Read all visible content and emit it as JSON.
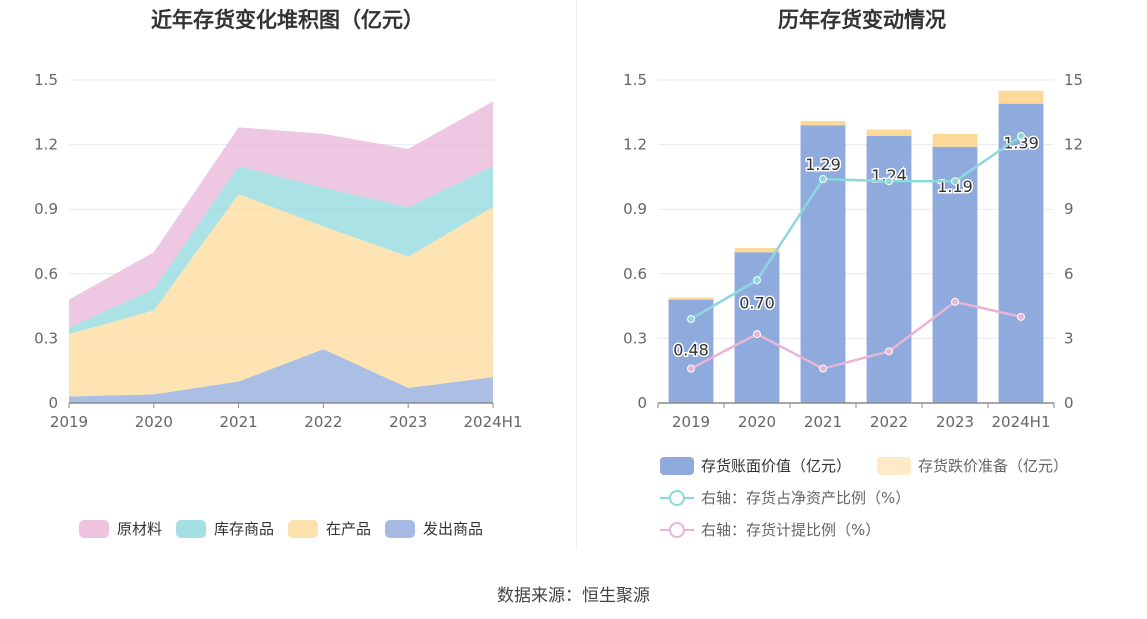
{
  "source": {
    "label": "数据来源：恒生聚源"
  },
  "chart_data": [
    {
      "type": "area",
      "stacked": true,
      "title": "近年存货变化堆积图（亿元）",
      "categories": [
        "2019",
        "2020",
        "2021",
        "2022",
        "2023",
        "2024H1"
      ],
      "ylim": [
        0,
        1.5
      ],
      "yticks": [
        "0",
        "0.3",
        "0.6",
        "0.9",
        "1.2",
        "1.5"
      ],
      "grid": true,
      "legend_position": "bottom",
      "series": [
        {
          "name": "发出商品",
          "color": "#8faadc",
          "values": [
            0.03,
            0.04,
            0.1,
            0.25,
            0.07,
            0.12
          ]
        },
        {
          "name": "在产品",
          "color": "#fdd999",
          "values": [
            0.29,
            0.39,
            0.87,
            0.57,
            0.61,
            0.79
          ]
        },
        {
          "name": "库存商品",
          "color": "#8dd8dc",
          "values": [
            0.03,
            0.1,
            0.13,
            0.18,
            0.23,
            0.19
          ]
        },
        {
          "name": "原材料",
          "color": "#e8b4d8",
          "values": [
            0.13,
            0.17,
            0.18,
            0.25,
            0.27,
            0.3
          ]
        }
      ],
      "legend_order": [
        "原材料",
        "库存商品",
        "在产品",
        "发出商品"
      ]
    },
    {
      "type": "bar",
      "stacked": true,
      "title": "历年存货变动情况",
      "categories": [
        "2019",
        "2020",
        "2021",
        "2022",
        "2023",
        "2024H1"
      ],
      "ylim": [
        0,
        1.5
      ],
      "yticks": [
        "0",
        "0.3",
        "0.6",
        "0.9",
        "1.2",
        "1.5"
      ],
      "y2lim": [
        0,
        15
      ],
      "y2ticks": [
        "0",
        "3",
        "6",
        "9",
        "12",
        "15"
      ],
      "grid": true,
      "legend_position": "bottom",
      "bar_series": [
        {
          "name": "存货账面价值（亿元）",
          "color": "#8faadc",
          "values": [
            0.48,
            0.7,
            1.29,
            1.24,
            1.19,
            1.39
          ],
          "labels": [
            "0.48",
            "0.70",
            "1.29",
            "1.24",
            "1.19",
            "1.39"
          ]
        },
        {
          "name": "存货跌价准备（亿元）",
          "color": "#fdd999",
          "values": [
            0.01,
            0.02,
            0.02,
            0.03,
            0.06,
            0.06
          ]
        }
      ],
      "line_series": [
        {
          "name": "右轴：存货占净资产比例（%）",
          "color": "#8dd8dc",
          "axis": "right",
          "values": [
            3.9,
            5.7,
            10.4,
            10.3,
            10.3,
            12.4
          ]
        },
        {
          "name": "右轴：存货计提比例（%）",
          "color": "#e8b4d8",
          "axis": "right",
          "values": [
            1.6,
            3.2,
            1.6,
            2.4,
            4.7,
            4.0
          ]
        }
      ]
    }
  ]
}
